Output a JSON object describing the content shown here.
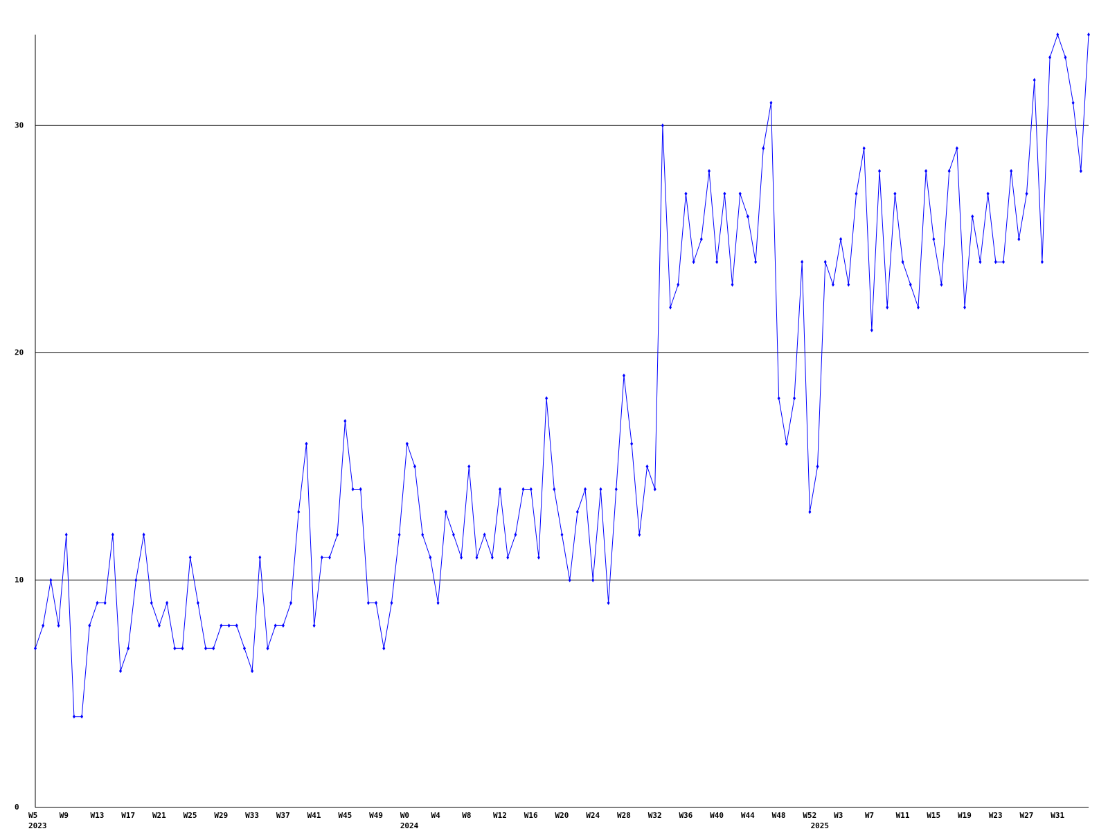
{
  "chart_data": {
    "type": "line",
    "categories": [
      "W5",
      null,
      null,
      null,
      "W9",
      null,
      null,
      null,
      "W13",
      null,
      null,
      null,
      "W17",
      null,
      null,
      null,
      "W21",
      null,
      null,
      null,
      "W25",
      null,
      null,
      null,
      "W29",
      null,
      null,
      null,
      "W33",
      null,
      null,
      null,
      "W37",
      null,
      null,
      null,
      "W41",
      null,
      null,
      null,
      "W45",
      null,
      null,
      null,
      "W49",
      null,
      null,
      null,
      "W0",
      null,
      null,
      null,
      "W4",
      null,
      null,
      null,
      "W8",
      null,
      null,
      null,
      "W12",
      null,
      null,
      null,
      "W16",
      null,
      null,
      null,
      "W20",
      null,
      null,
      null,
      "W24",
      null,
      null,
      null,
      "W28",
      null,
      null,
      null,
      "W32",
      null,
      null,
      null,
      "W36",
      null,
      null,
      null,
      "W40",
      null,
      null,
      null,
      "W44",
      null,
      null,
      null,
      "W48",
      null,
      null,
      null,
      "W52",
      null,
      null,
      null,
      "W3",
      null,
      null,
      null,
      "W7",
      null,
      null,
      null,
      "W11",
      null,
      null,
      null,
      "W15",
      null,
      null,
      null,
      "W19",
      null,
      null,
      null,
      "W23",
      null,
      null,
      null,
      "W27",
      null,
      null,
      null,
      "W31",
      null,
      null,
      null,
      null
    ],
    "year_labels": [
      {
        "label": "2023",
        "at": 0
      },
      {
        "label": "2024",
        "at": 48
      },
      {
        "label": "2025",
        "at": 101
      }
    ],
    "series": [
      {
        "color": "#0000ff",
        "values": [
          7,
          8,
          10,
          8,
          12,
          4,
          4,
          8,
          9,
          9,
          12,
          6,
          7,
          10,
          12,
          9,
          8,
          9,
          7,
          7,
          11,
          9,
          7,
          7,
          8,
          8,
          8,
          7,
          6,
          11,
          7,
          8,
          8,
          9,
          13,
          16,
          8,
          11,
          11,
          12,
          17,
          14,
          14,
          9,
          9,
          7,
          9,
          12,
          16,
          15,
          12,
          11,
          9,
          13,
          12,
          11,
          15,
          11,
          12,
          11,
          14,
          11,
          12,
          14,
          14,
          11,
          18,
          14,
          12,
          10,
          13,
          14,
          10,
          14,
          9,
          14,
          19,
          16,
          12,
          15,
          14,
          30,
          22,
          23,
          27,
          24,
          25,
          28,
          24,
          27,
          23,
          27,
          26,
          24,
          29,
          31,
          18,
          16,
          18,
          24,
          13,
          15,
          24,
          23,
          25,
          23,
          27,
          29,
          21,
          28,
          22,
          27,
          24,
          23,
          22,
          28,
          25,
          23,
          28,
          29,
          22,
          26,
          24,
          27,
          24,
          24,
          28,
          25,
          27,
          32,
          24,
          33,
          34,
          33,
          31,
          28,
          34
        ]
      }
    ],
    "ylim": [
      0,
      34
    ],
    "yticks": [
      0,
      10,
      20,
      30
    ],
    "grid": true
  }
}
